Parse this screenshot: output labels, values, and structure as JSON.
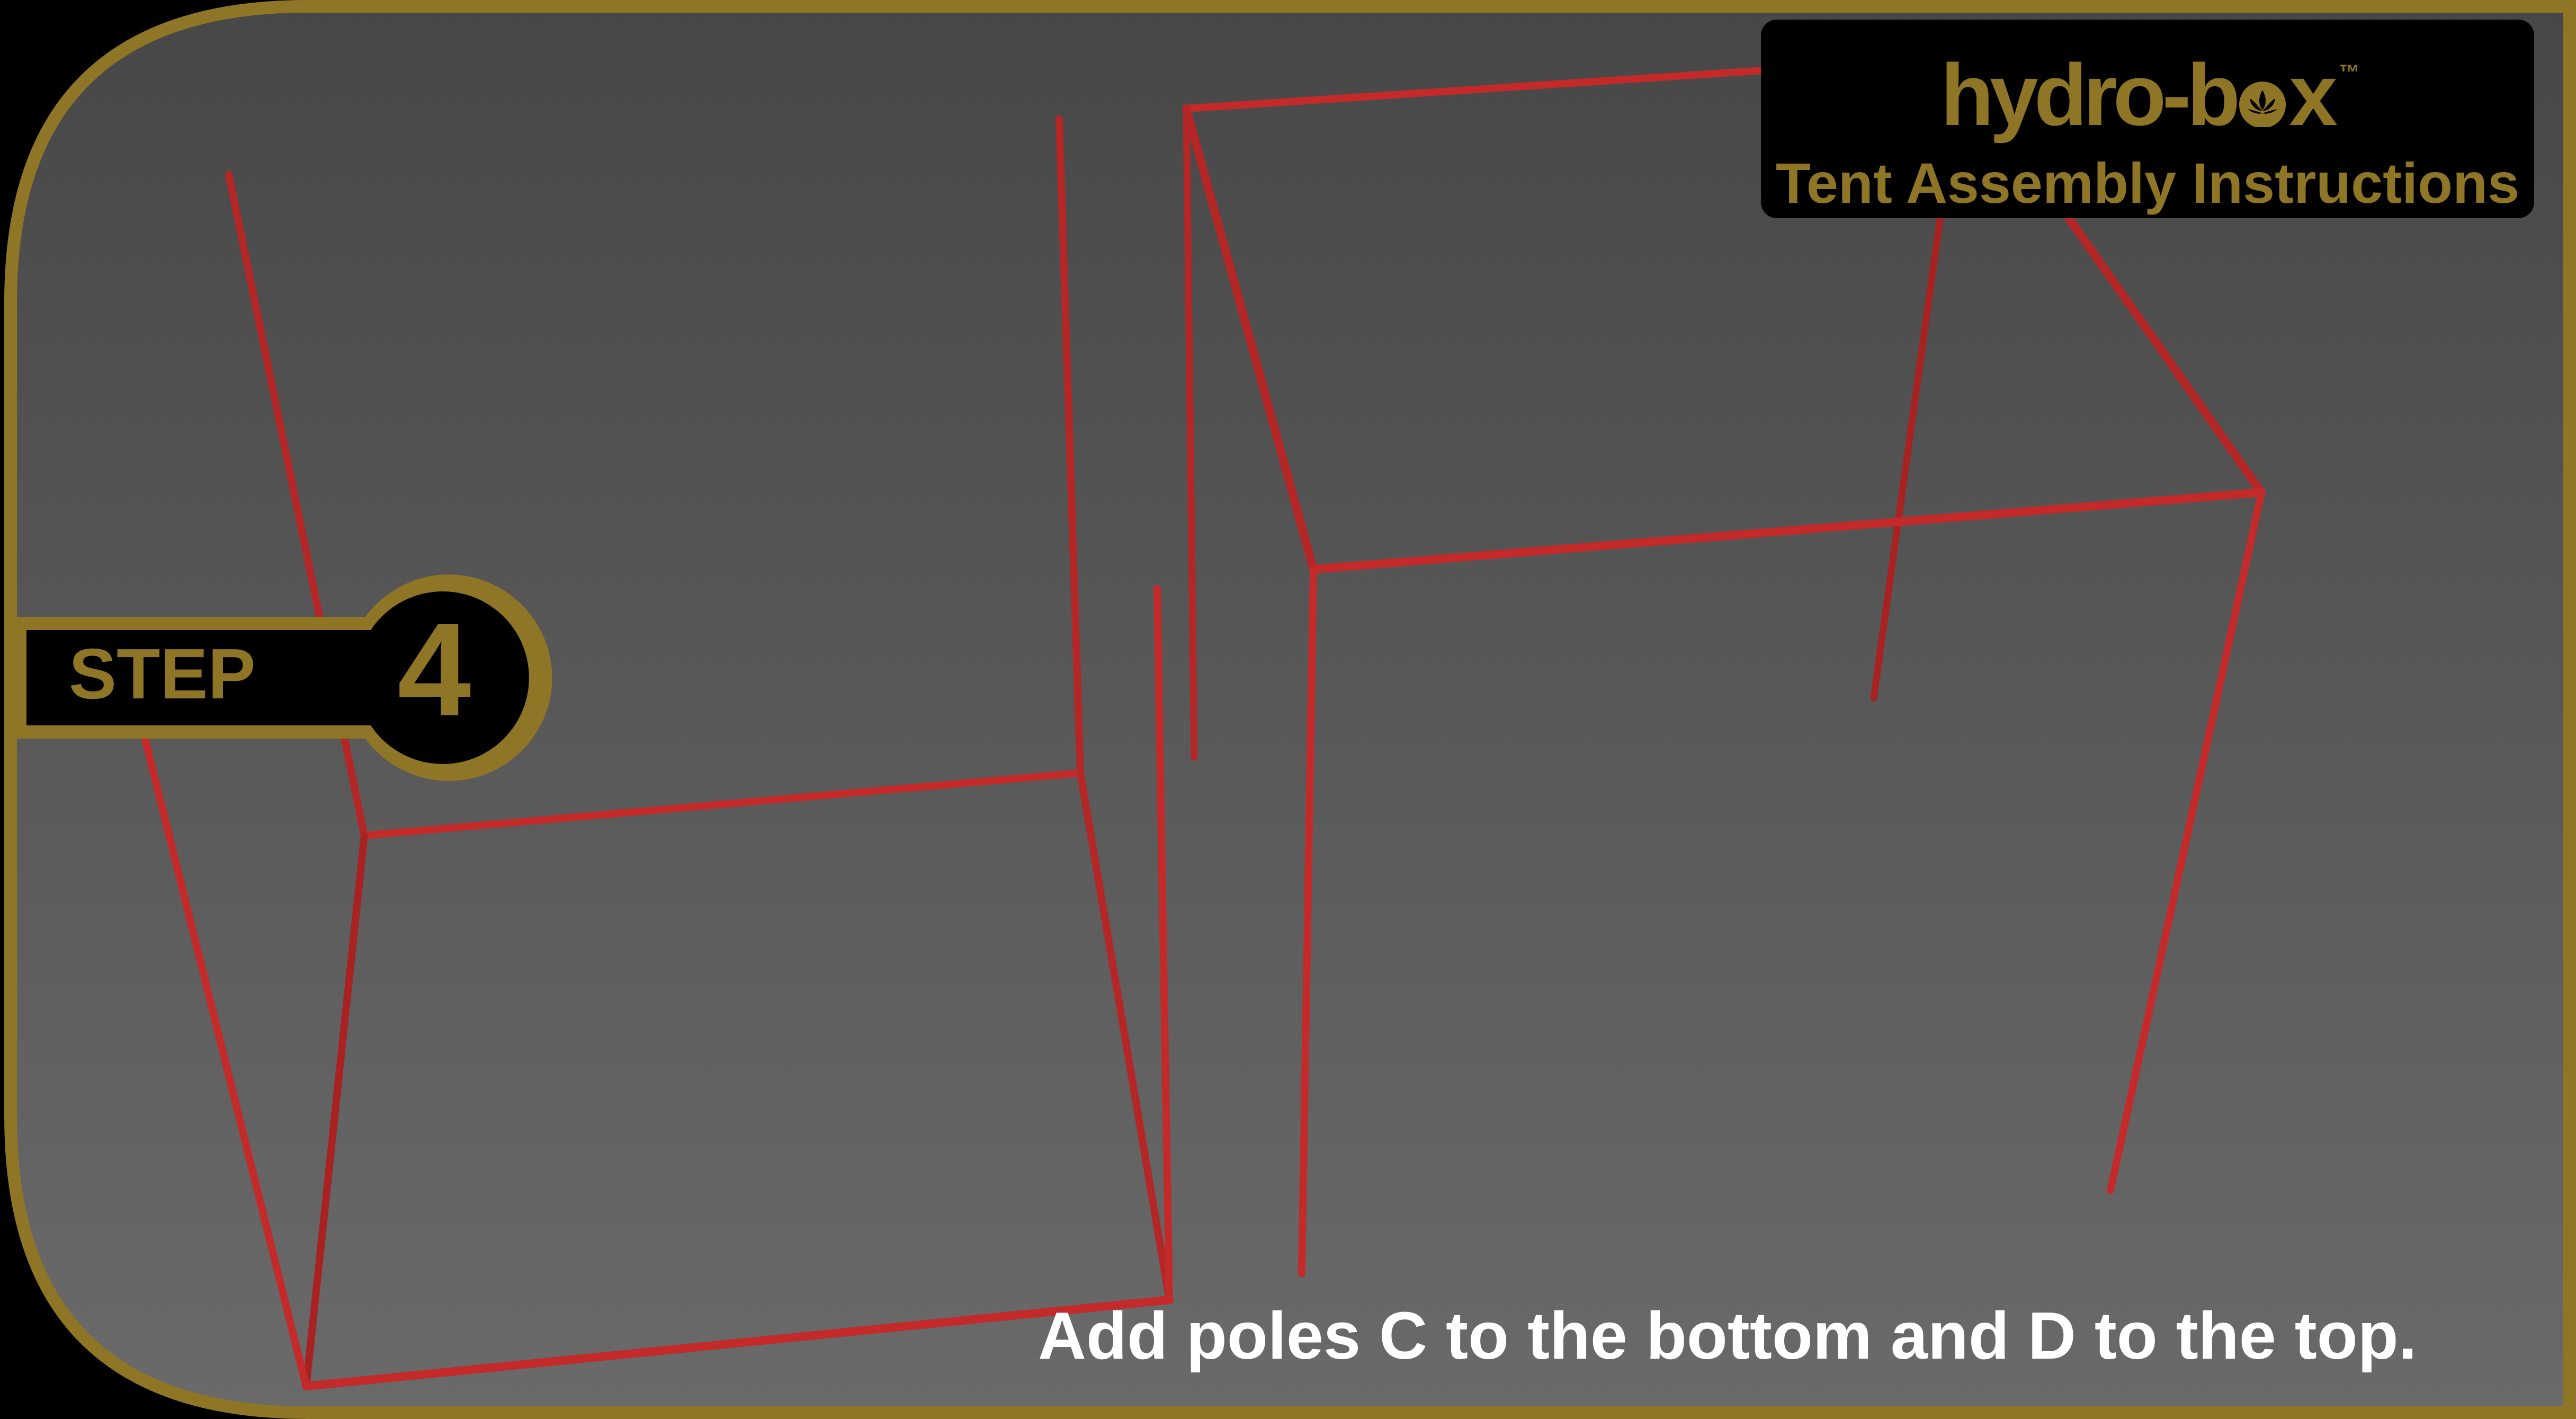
{
  "colors": {
    "gold": "#8f7626",
    "pole_red": "#c42a2a",
    "background_top": "#4a4a4a",
    "background_bottom": "#676767",
    "panel_black": "#000000",
    "caption_white": "#ffffff"
  },
  "brand": {
    "logo_text_left": "hydro-b",
    "logo_text_right": "x",
    "logo_icon": "lotus-icon",
    "trademark": "™",
    "title": "Tent Assembly Instructions"
  },
  "step": {
    "label": "STEP",
    "number": "4"
  },
  "caption": "Add poles C to the bottom and  D to the top."
}
